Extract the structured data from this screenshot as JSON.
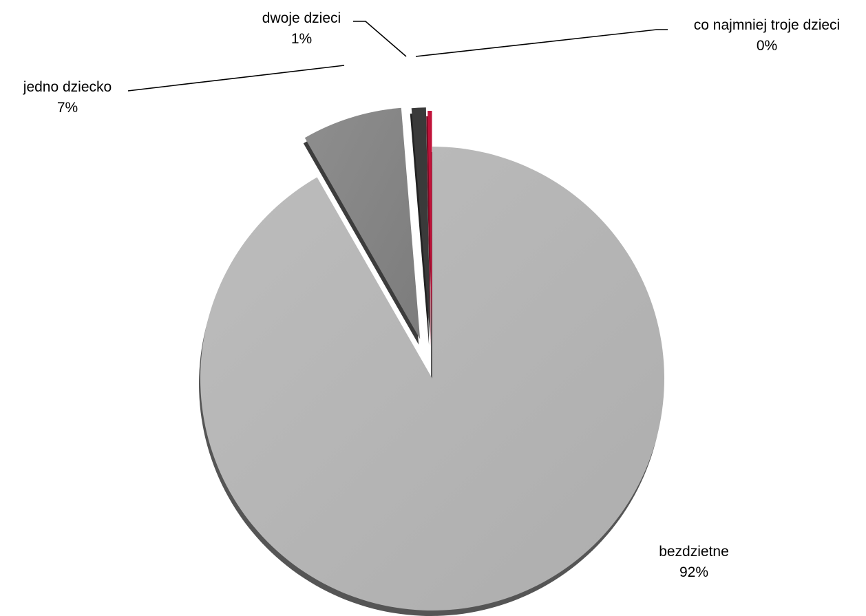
{
  "chart_data": {
    "type": "pie",
    "style": "3d-exploded",
    "categories": [
      "bezdzietne",
      "jedno dziecko",
      "dwoje dzieci",
      "co najmniej troje dzieci"
    ],
    "values": [
      92,
      7,
      1,
      0.3
    ],
    "value_labels": [
      "92%",
      "7%",
      "1%",
      "0%"
    ],
    "colors": [
      "#b4b4b4",
      "#858585",
      "#3a3a3a",
      "#c0133a"
    ],
    "title": "",
    "legend": "none"
  }
}
